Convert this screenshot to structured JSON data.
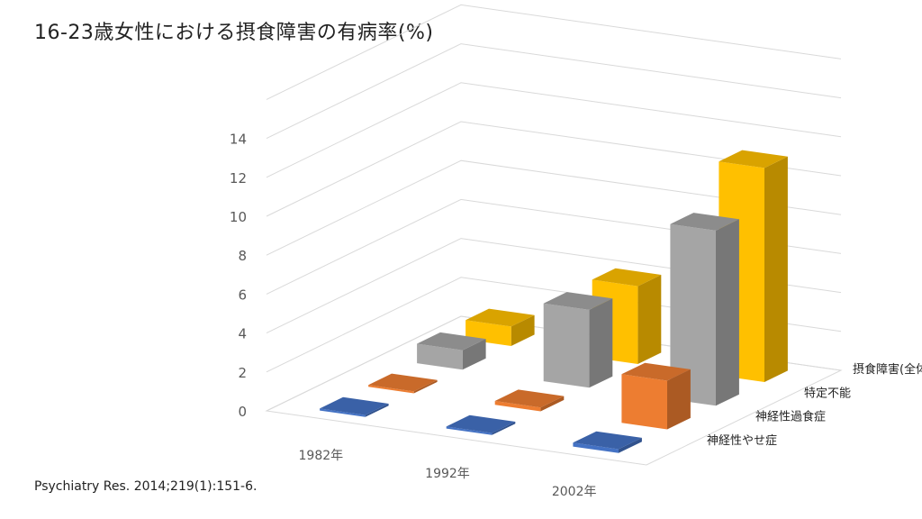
{
  "title": "16-23歳女性における摂食障害の有病率(%)",
  "source": "Psychiatry Res. 2014;219(1):151-6.",
  "chart_data": {
    "type": "bar",
    "subtype": "3d-column",
    "categories": [
      "1982年",
      "1992年",
      "2002年"
    ],
    "ylim": [
      0,
      14
    ],
    "yticks": [
      0,
      2,
      4,
      6,
      8,
      10,
      12,
      14
    ],
    "grid": true,
    "series": [
      {
        "name": "神経性やせ症",
        "color": "#4472C4",
        "values": [
          0.1,
          0.1,
          0.2
        ]
      },
      {
        "name": "神経性過食症",
        "color": "#ED7D31",
        "values": [
          0.1,
          0.2,
          2.5
        ]
      },
      {
        "name": "特定不能",
        "color": "#A5A5A5",
        "values": [
          1.0,
          4.0,
          9.0
        ]
      },
      {
        "name": "摂食障害(全体)",
        "color": "#FFC000",
        "values": [
          1.0,
          4.0,
          11.0
        ]
      }
    ]
  }
}
